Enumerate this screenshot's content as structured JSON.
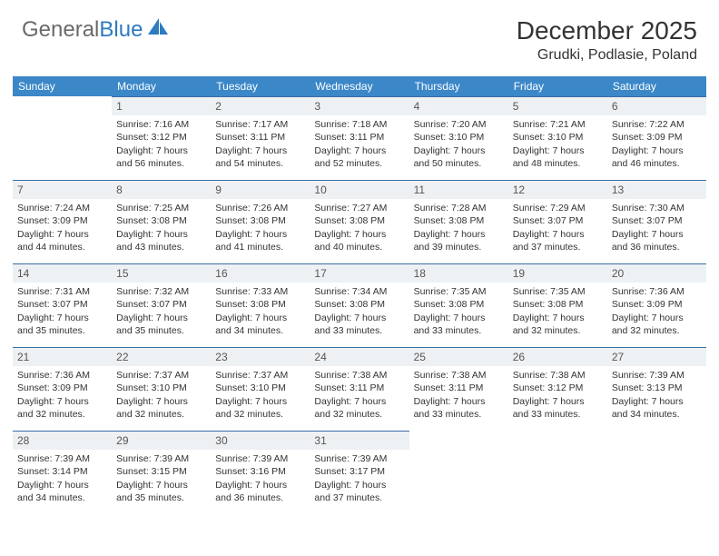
{
  "logo": {
    "text1": "General",
    "text2": "Blue"
  },
  "title": "December 2025",
  "subtitle": "Grudki, Podlasie, Poland",
  "colors": {
    "header_bg": "#3b87c8",
    "header_text": "#ffffff",
    "daynum_bg": "#eef1f4",
    "daynum_border": "#3b6fa1",
    "page_bg": "#ffffff",
    "logo_gray": "#6a6a6a",
    "logo_blue": "#2d7bc0"
  },
  "fonts": {
    "title_size": 28,
    "subtitle_size": 16,
    "header_cell_size": 12,
    "daynum_size": 12,
    "body_size": 10.5
  },
  "day_labels": [
    "Sunday",
    "Monday",
    "Tuesday",
    "Wednesday",
    "Thursday",
    "Friday",
    "Saturday"
  ],
  "weeks": [
    [
      {
        "n": "",
        "sr": "",
        "ss": "",
        "dl": ""
      },
      {
        "n": "1",
        "sr": "Sunrise: 7:16 AM",
        "ss": "Sunset: 3:12 PM",
        "dl": "Daylight: 7 hours and 56 minutes."
      },
      {
        "n": "2",
        "sr": "Sunrise: 7:17 AM",
        "ss": "Sunset: 3:11 PM",
        "dl": "Daylight: 7 hours and 54 minutes."
      },
      {
        "n": "3",
        "sr": "Sunrise: 7:18 AM",
        "ss": "Sunset: 3:11 PM",
        "dl": "Daylight: 7 hours and 52 minutes."
      },
      {
        "n": "4",
        "sr": "Sunrise: 7:20 AM",
        "ss": "Sunset: 3:10 PM",
        "dl": "Daylight: 7 hours and 50 minutes."
      },
      {
        "n": "5",
        "sr": "Sunrise: 7:21 AM",
        "ss": "Sunset: 3:10 PM",
        "dl": "Daylight: 7 hours and 48 minutes."
      },
      {
        "n": "6",
        "sr": "Sunrise: 7:22 AM",
        "ss": "Sunset: 3:09 PM",
        "dl": "Daylight: 7 hours and 46 minutes."
      }
    ],
    [
      {
        "n": "7",
        "sr": "Sunrise: 7:24 AM",
        "ss": "Sunset: 3:09 PM",
        "dl": "Daylight: 7 hours and 44 minutes."
      },
      {
        "n": "8",
        "sr": "Sunrise: 7:25 AM",
        "ss": "Sunset: 3:08 PM",
        "dl": "Daylight: 7 hours and 43 minutes."
      },
      {
        "n": "9",
        "sr": "Sunrise: 7:26 AM",
        "ss": "Sunset: 3:08 PM",
        "dl": "Daylight: 7 hours and 41 minutes."
      },
      {
        "n": "10",
        "sr": "Sunrise: 7:27 AM",
        "ss": "Sunset: 3:08 PM",
        "dl": "Daylight: 7 hours and 40 minutes."
      },
      {
        "n": "11",
        "sr": "Sunrise: 7:28 AM",
        "ss": "Sunset: 3:08 PM",
        "dl": "Daylight: 7 hours and 39 minutes."
      },
      {
        "n": "12",
        "sr": "Sunrise: 7:29 AM",
        "ss": "Sunset: 3:07 PM",
        "dl": "Daylight: 7 hours and 37 minutes."
      },
      {
        "n": "13",
        "sr": "Sunrise: 7:30 AM",
        "ss": "Sunset: 3:07 PM",
        "dl": "Daylight: 7 hours and 36 minutes."
      }
    ],
    [
      {
        "n": "14",
        "sr": "Sunrise: 7:31 AM",
        "ss": "Sunset: 3:07 PM",
        "dl": "Daylight: 7 hours and 35 minutes."
      },
      {
        "n": "15",
        "sr": "Sunrise: 7:32 AM",
        "ss": "Sunset: 3:07 PM",
        "dl": "Daylight: 7 hours and 35 minutes."
      },
      {
        "n": "16",
        "sr": "Sunrise: 7:33 AM",
        "ss": "Sunset: 3:08 PM",
        "dl": "Daylight: 7 hours and 34 minutes."
      },
      {
        "n": "17",
        "sr": "Sunrise: 7:34 AM",
        "ss": "Sunset: 3:08 PM",
        "dl": "Daylight: 7 hours and 33 minutes."
      },
      {
        "n": "18",
        "sr": "Sunrise: 7:35 AM",
        "ss": "Sunset: 3:08 PM",
        "dl": "Daylight: 7 hours and 33 minutes."
      },
      {
        "n": "19",
        "sr": "Sunrise: 7:35 AM",
        "ss": "Sunset: 3:08 PM",
        "dl": "Daylight: 7 hours and 32 minutes."
      },
      {
        "n": "20",
        "sr": "Sunrise: 7:36 AM",
        "ss": "Sunset: 3:09 PM",
        "dl": "Daylight: 7 hours and 32 minutes."
      }
    ],
    [
      {
        "n": "21",
        "sr": "Sunrise: 7:36 AM",
        "ss": "Sunset: 3:09 PM",
        "dl": "Daylight: 7 hours and 32 minutes."
      },
      {
        "n": "22",
        "sr": "Sunrise: 7:37 AM",
        "ss": "Sunset: 3:10 PM",
        "dl": "Daylight: 7 hours and 32 minutes."
      },
      {
        "n": "23",
        "sr": "Sunrise: 7:37 AM",
        "ss": "Sunset: 3:10 PM",
        "dl": "Daylight: 7 hours and 32 minutes."
      },
      {
        "n": "24",
        "sr": "Sunrise: 7:38 AM",
        "ss": "Sunset: 3:11 PM",
        "dl": "Daylight: 7 hours and 32 minutes."
      },
      {
        "n": "25",
        "sr": "Sunrise: 7:38 AM",
        "ss": "Sunset: 3:11 PM",
        "dl": "Daylight: 7 hours and 33 minutes."
      },
      {
        "n": "26",
        "sr": "Sunrise: 7:38 AM",
        "ss": "Sunset: 3:12 PM",
        "dl": "Daylight: 7 hours and 33 minutes."
      },
      {
        "n": "27",
        "sr": "Sunrise: 7:39 AM",
        "ss": "Sunset: 3:13 PM",
        "dl": "Daylight: 7 hours and 34 minutes."
      }
    ],
    [
      {
        "n": "28",
        "sr": "Sunrise: 7:39 AM",
        "ss": "Sunset: 3:14 PM",
        "dl": "Daylight: 7 hours and 34 minutes."
      },
      {
        "n": "29",
        "sr": "Sunrise: 7:39 AM",
        "ss": "Sunset: 3:15 PM",
        "dl": "Daylight: 7 hours and 35 minutes."
      },
      {
        "n": "30",
        "sr": "Sunrise: 7:39 AM",
        "ss": "Sunset: 3:16 PM",
        "dl": "Daylight: 7 hours and 36 minutes."
      },
      {
        "n": "31",
        "sr": "Sunrise: 7:39 AM",
        "ss": "Sunset: 3:17 PM",
        "dl": "Daylight: 7 hours and 37 minutes."
      },
      {
        "n": "",
        "sr": "",
        "ss": "",
        "dl": ""
      },
      {
        "n": "",
        "sr": "",
        "ss": "",
        "dl": ""
      },
      {
        "n": "",
        "sr": "",
        "ss": "",
        "dl": ""
      }
    ]
  ]
}
